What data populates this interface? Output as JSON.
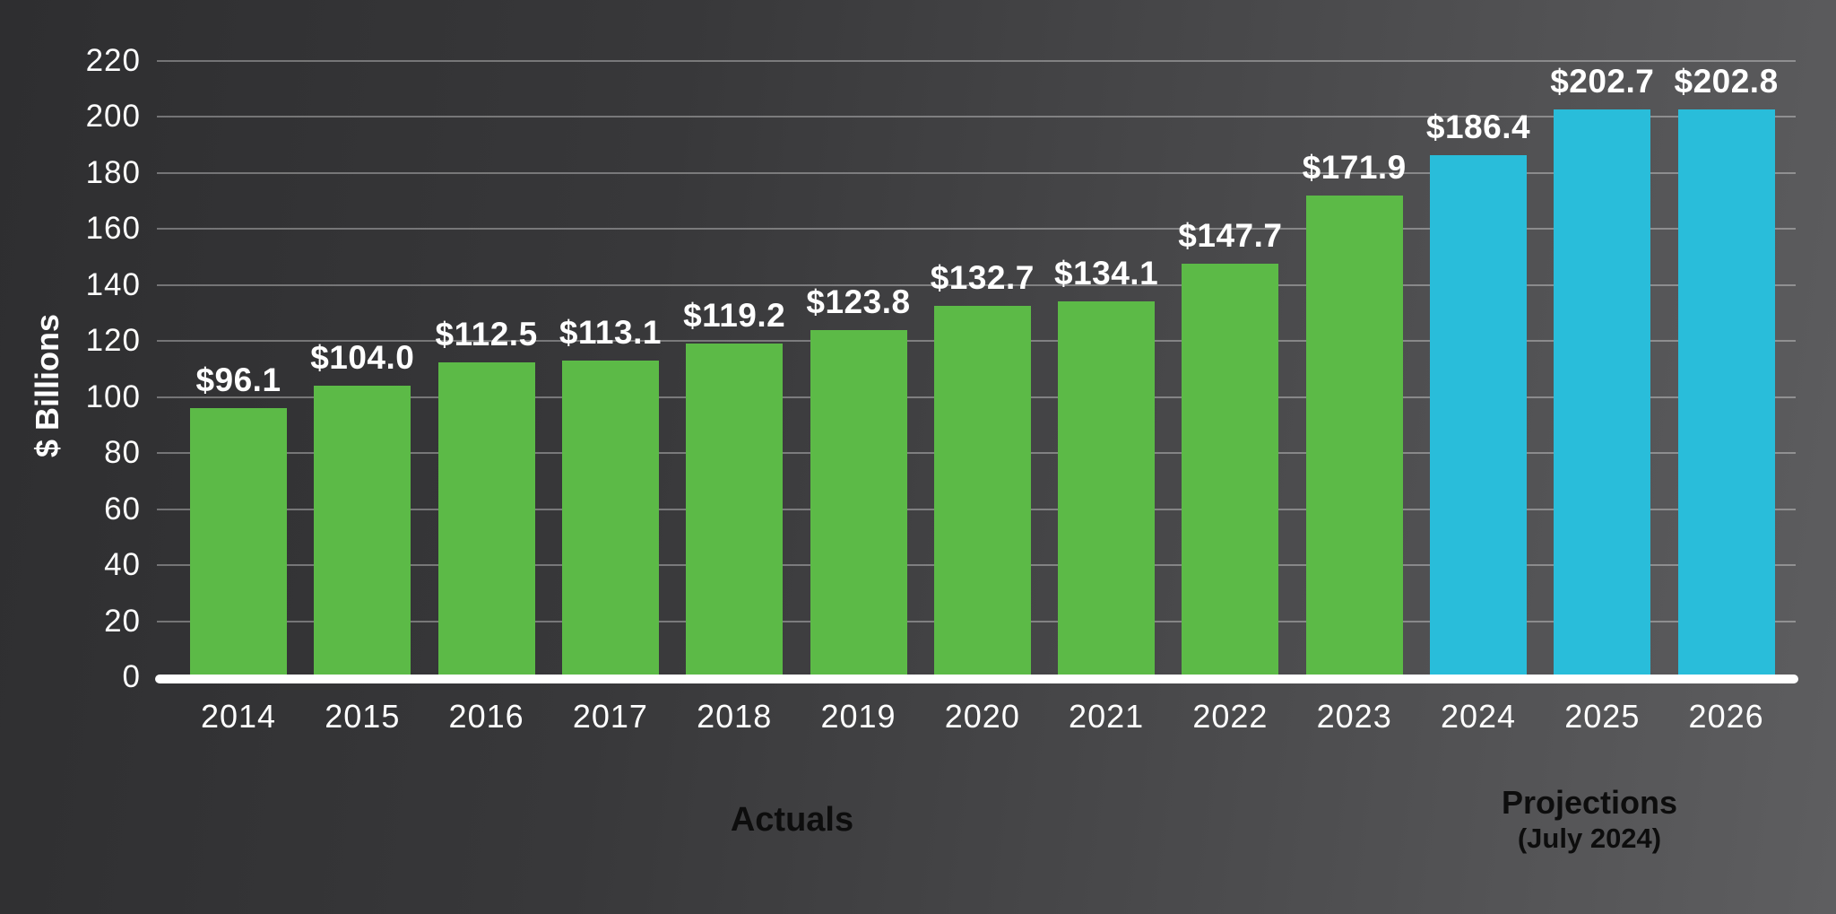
{
  "chart_data": {
    "type": "bar",
    "title": "",
    "ylabel": "$ Billions",
    "ylim": [
      0,
      220
    ],
    "ytick_step": 20,
    "yticks": [
      0,
      20,
      40,
      60,
      80,
      100,
      120,
      140,
      160,
      180,
      200,
      220
    ],
    "grid": "horizontal",
    "legend_position": "bottom",
    "categories": [
      "2014",
      "2015",
      "2016",
      "2017",
      "2018",
      "2019",
      "2020",
      "2021",
      "2022",
      "2023",
      "2024",
      "2025",
      "2026"
    ],
    "series": [
      {
        "name": "Actuals",
        "color": "#5cba47",
        "categories": [
          "2014",
          "2015",
          "2016",
          "2017",
          "2018",
          "2019",
          "2020",
          "2021",
          "2022",
          "2023"
        ],
        "values": [
          96.1,
          104.0,
          112.5,
          113.1,
          119.2,
          123.8,
          132.7,
          134.1,
          147.7,
          171.9
        ]
      },
      {
        "name": "Projections (July 2024)",
        "color": "#29bdda",
        "categories": [
          "2024",
          "2025",
          "2026"
        ],
        "values": [
          186.4,
          202.7,
          202.8
        ]
      }
    ],
    "points": [
      {
        "year": "2014",
        "value": 96.1,
        "label": "$96.1",
        "group": "actuals"
      },
      {
        "year": "2015",
        "value": 104.0,
        "label": "$104.0",
        "group": "actuals"
      },
      {
        "year": "2016",
        "value": 112.5,
        "label": "$112.5",
        "group": "actuals"
      },
      {
        "year": "2017",
        "value": 113.1,
        "label": "$113.1",
        "group": "actuals"
      },
      {
        "year": "2018",
        "value": 119.2,
        "label": "$119.2",
        "group": "actuals"
      },
      {
        "year": "2019",
        "value": 123.8,
        "label": "$123.8",
        "group": "actuals"
      },
      {
        "year": "2020",
        "value": 132.7,
        "label": "$132.7",
        "group": "actuals"
      },
      {
        "year": "2021",
        "value": 134.1,
        "label": "$134.1",
        "group": "actuals"
      },
      {
        "year": "2022",
        "value": 147.7,
        "label": "$147.7",
        "group": "actuals"
      },
      {
        "year": "2023",
        "value": 171.9,
        "label": "$171.9",
        "group": "actuals"
      },
      {
        "year": "2024",
        "value": 186.4,
        "label": "$186.4",
        "group": "projections"
      },
      {
        "year": "2025",
        "value": 202.7,
        "label": "$202.7",
        "group": "projections"
      },
      {
        "year": "2026",
        "value": 202.8,
        "label": "$202.8",
        "group": "projections"
      }
    ]
  },
  "legend": {
    "actuals_label": "Actuals",
    "projections_label": "Projections",
    "projections_sublabel": "(July 2024)"
  },
  "colors": {
    "actuals": "#5cba47",
    "projections": "#29bdda",
    "background_left": "#2e2e30",
    "background_right": "#5e5e60",
    "grid": "rgba(255,255,255,0.33)",
    "axis_line": "#ffffff",
    "value_text": "#ffffff",
    "tick_text": "#ffffff",
    "legend_text": "#0d0d0d"
  }
}
